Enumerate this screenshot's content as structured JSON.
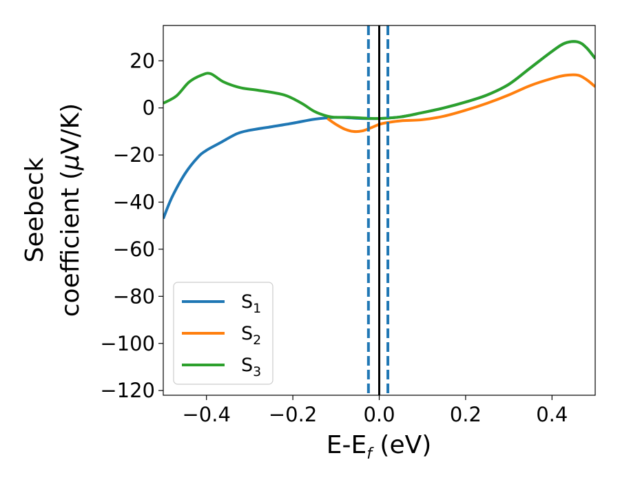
{
  "chart_data": {
    "type": "line",
    "xlabel": "E-E",
    "xlabel_sub": "f",
    "xlabel_unit": " (eV)",
    "ylabel_line1": "Seebeck",
    "ylabel_line2": "coefficient  (",
    "ylabel_mu": "μ",
    "ylabel_unit": "V/K)",
    "xlim": [
      -0.5,
      0.5
    ],
    "ylim": [
      -122,
      35
    ],
    "x_ticks": [
      -0.4,
      -0.2,
      0.0,
      0.2,
      0.4
    ],
    "x_tick_labels": [
      "−0.4",
      "−0.2",
      "0.0",
      "0.2",
      "0.4"
    ],
    "y_ticks": [
      20,
      0,
      -20,
      -40,
      -60,
      -80,
      -100,
      -120
    ],
    "y_tick_labels": [
      "20",
      "0",
      "−20",
      "−40",
      "−60",
      "−80",
      "−100",
      "−120"
    ],
    "grid": false,
    "legend_position": "lower-left",
    "vertical_lines": [
      {
        "x": -0.025,
        "style": "dashed",
        "color": "#1f77b4"
      },
      {
        "x": 0.0,
        "style": "solid",
        "color": "#000000"
      },
      {
        "x": 0.02,
        "style": "dashed",
        "color": "#1f77b4"
      }
    ],
    "series": [
      {
        "name": "S",
        "sub": "1",
        "color": "#1f77b4",
        "x": [
          -0.5,
          -0.48,
          -0.45,
          -0.42,
          -0.4,
          -0.37,
          -0.33,
          -0.3,
          -0.25,
          -0.2,
          -0.15,
          -0.1,
          -0.07,
          -0.04,
          0.0,
          0.05,
          0.1,
          0.15,
          0.2,
          0.25,
          0.3,
          0.35,
          0.4,
          0.43,
          0.46,
          0.48,
          0.5
        ],
        "y": [
          -47,
          -38,
          -28,
          -21,
          -18,
          -15,
          -11,
          -9.5,
          -8,
          -6.5,
          -4.8,
          -4,
          -4.2,
          -4.5,
          -4.5,
          -3.8,
          -2,
          0,
          2.5,
          5.5,
          10,
          17,
          24,
          27.5,
          28,
          25.5,
          21
        ]
      },
      {
        "name": "S",
        "sub": "2",
        "color": "#ff7f0e",
        "x": [
          -0.12,
          -0.1,
          -0.08,
          -0.06,
          -0.04,
          -0.02,
          0.0,
          0.02,
          0.05,
          0.1,
          0.15,
          0.2,
          0.25,
          0.3,
          0.35,
          0.4,
          0.43,
          0.46,
          0.48,
          0.5
        ],
        "y": [
          -4.5,
          -7,
          -9,
          -10,
          -9.8,
          -8.5,
          -7,
          -6.2,
          -5.5,
          -5,
          -3.5,
          -1,
          2,
          5.5,
          9.5,
          12.5,
          13.8,
          13.9,
          12,
          9
        ]
      },
      {
        "name": "S",
        "sub": "3",
        "color": "#2ca02c",
        "x": [
          -0.5,
          -0.47,
          -0.44,
          -0.41,
          -0.39,
          -0.36,
          -0.32,
          -0.28,
          -0.22,
          -0.18,
          -0.15,
          -0.12,
          -0.1,
          -0.07,
          -0.04,
          0.0,
          0.05,
          0.1,
          0.15,
          0.2,
          0.25,
          0.3,
          0.35,
          0.4,
          0.43,
          0.46,
          0.48,
          0.5
        ],
        "y": [
          2,
          5,
          11,
          14,
          14.5,
          11,
          8.5,
          7.5,
          5.5,
          2,
          -1.5,
          -3.5,
          -4,
          -4,
          -4.3,
          -4.5,
          -3.8,
          -2,
          0,
          2.5,
          5.5,
          10,
          17,
          24,
          27.5,
          28,
          25.5,
          21
        ]
      }
    ]
  }
}
